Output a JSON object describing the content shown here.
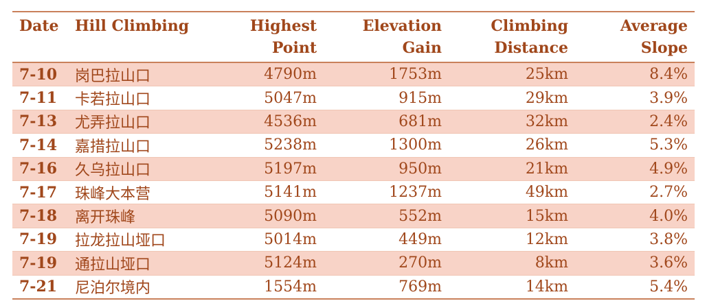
{
  "table": {
    "headers": {
      "date": "Date",
      "name": "Hill Climbing",
      "highest_line1": "Highest",
      "highest_line2": "Point",
      "elevation_line1": "Elevation",
      "elevation_line2": "Gain",
      "distance_line1": "Climbing",
      "distance_line2": "Distance",
      "slope_line1": "Average",
      "slope_line2": "Slope"
    },
    "rows": [
      {
        "date": "7-10",
        "name": "岗巴拉山口",
        "highest": "4790m",
        "elevation": "1753m",
        "distance": "25km",
        "slope": "8.4%"
      },
      {
        "date": "7-11",
        "name": "卡若拉山口",
        "highest": "5047m",
        "elevation": "915m",
        "distance": "29km",
        "slope": "3.9%"
      },
      {
        "date": "7-13",
        "name": "尤弄拉山口",
        "highest": "4536m",
        "elevation": "681m",
        "distance": "32km",
        "slope": "2.4%"
      },
      {
        "date": "7-14",
        "name": "嘉措拉山口",
        "highest": "5238m",
        "elevation": "1300m",
        "distance": "26km",
        "slope": "5.3%"
      },
      {
        "date": "7-16",
        "name": "久乌拉山口",
        "highest": "5197m",
        "elevation": "950m",
        "distance": "21km",
        "slope": "4.9%"
      },
      {
        "date": "7-17",
        "name": "珠峰大本营",
        "highest": "5141m",
        "elevation": "1237m",
        "distance": "49km",
        "slope": "2.7%"
      },
      {
        "date": "7-18",
        "name": "离开珠峰",
        "highest": "5090m",
        "elevation": "552m",
        "distance": "15km",
        "slope": "4.0%"
      },
      {
        "date": "7-19",
        "name": "拉龙拉山垭口",
        "highest": "5014m",
        "elevation": "449m",
        "distance": "12km",
        "slope": "3.8%"
      },
      {
        "date": "7-19",
        "name": "通拉山垭口",
        "highest": "5124m",
        "elevation": "270m",
        "distance": "8km",
        "slope": "3.6%"
      },
      {
        "date": "7-21",
        "name": "尼泊尔境内",
        "highest": "1554m",
        "elevation": "769m",
        "distance": "14km",
        "slope": "5.4%"
      }
    ]
  },
  "colors": {
    "text": "#a0471b",
    "row_shade": "#f8d3c7",
    "rule": "#c9805a"
  }
}
